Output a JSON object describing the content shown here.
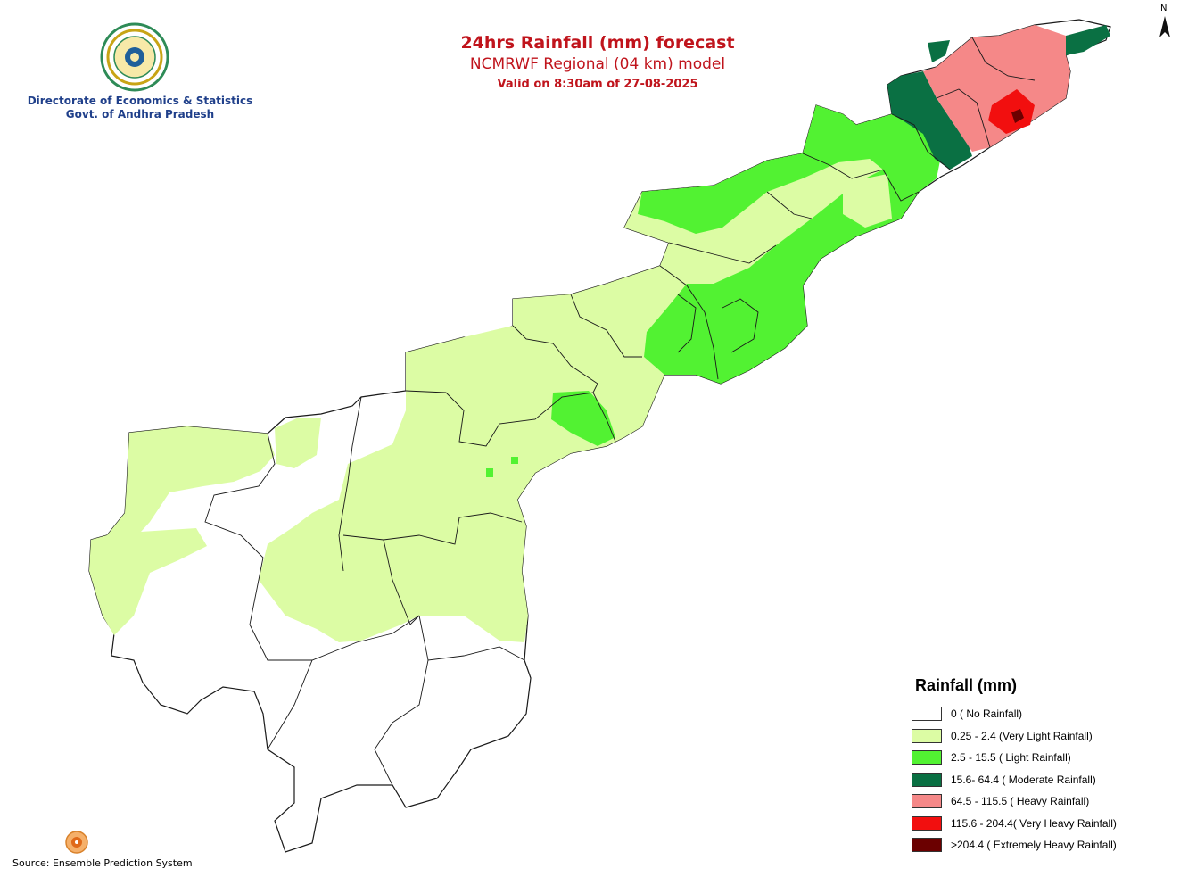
{
  "title": {
    "line1": "24hrs Rainfall (mm) forecast",
    "line2": "NCMRWF Regional (04 km) model",
    "line3": "Valid on 8:30am of 27-08-2025"
  },
  "organization": {
    "line1": "Directorate of Economics & Statistics",
    "line2": "Govt. of Andhra Pradesh"
  },
  "north_arrow": {
    "label": "N"
  },
  "source": "Source: Ensemble Prediction System",
  "legend": {
    "title": "Rainfall (mm)",
    "items": [
      {
        "label": "0 ( No Rainfall)",
        "color": "#ffffff"
      },
      {
        "label": "0.25 - 2.4 (Very Light Rainfall)",
        "color": "#dcfca4"
      },
      {
        "label": "2.5 - 15.5 ( Light Rainfall)",
        "color": "#52f232"
      },
      {
        "label": "15.6- 64.4 ( Moderate Rainfall)",
        "color": "#0a7043"
      },
      {
        "label": "64.5 - 115.5 ( Heavy Rainfall)",
        "color": "#f58888"
      },
      {
        "label": "115.6 - 204.4( Very Heavy Rainfall)",
        "color": "#f20f0f"
      },
      {
        "label": ">204.4 ( Extremely Heavy Rainfall)",
        "color": "#6b0000"
      }
    ]
  },
  "colors": {
    "title": "#c0141c",
    "organization": "#1f3f8a",
    "boundary": "#1a1a1a"
  }
}
